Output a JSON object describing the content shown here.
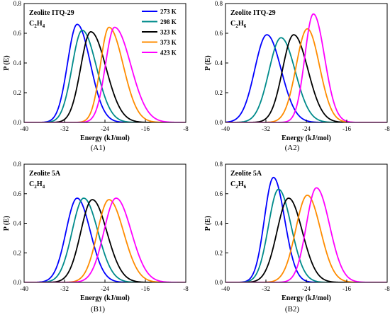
{
  "figure": {
    "panels": [
      "A1",
      "A2",
      "B1",
      "B2"
    ],
    "legend": [
      {
        "label": "273 K",
        "color": "#0000ff"
      },
      {
        "label": "298 K",
        "color": "#008b8b"
      },
      {
        "label": "323 K",
        "color": "#000000"
      },
      {
        "label": "373 K",
        "color": "#ff8c00"
      },
      {
        "label": "423 K",
        "color": "#ff00ff"
      }
    ]
  },
  "chart_data": [
    {
      "panel_label": "(A1)",
      "type": "line",
      "title": "Zeolite ITQ-29",
      "subtitle": "C2H4",
      "xlabel": "Energy (kJ/mol)",
      "ylabel": "P (E)",
      "xlim": [
        -40,
        -8
      ],
      "ylim": [
        0,
        0.8
      ],
      "xticks": [
        -40,
        -32,
        -24,
        -16,
        -8
      ],
      "yticks": [
        0.0,
        0.2,
        0.4,
        0.6,
        0.8
      ],
      "legend_position": "top-right",
      "series": [
        {
          "name": "273 K",
          "color": "#0000ff",
          "peak_x": -29.5,
          "peak_y": 0.66,
          "sigma_left": 1.9,
          "sigma_right": 2.6
        },
        {
          "name": "298 K",
          "color": "#008b8b",
          "peak_x": -28.5,
          "peak_y": 0.62,
          "sigma_left": 2.0,
          "sigma_right": 2.8
        },
        {
          "name": "323 K",
          "color": "#000000",
          "peak_x": -26.8,
          "peak_y": 0.61,
          "sigma_left": 2.0,
          "sigma_right": 3.0
        },
        {
          "name": "373 K",
          "color": "#ff8c00",
          "peak_x": -23.2,
          "peak_y": 0.64,
          "sigma_left": 1.7,
          "sigma_right": 2.8
        },
        {
          "name": "423 K",
          "color": "#ff00ff",
          "peak_x": -22.1,
          "peak_y": 0.64,
          "sigma_left": 1.8,
          "sigma_right": 3.2
        }
      ]
    },
    {
      "panel_label": "(A2)",
      "type": "line",
      "title": "Zeolite ITQ-29",
      "subtitle": "C2H6",
      "xlabel": "Energy (kJ/mol)",
      "ylabel": "P (E)",
      "xlim": [
        -40,
        -8
      ],
      "ylim": [
        0,
        0.8
      ],
      "xticks": [
        -40,
        -32,
        -24,
        -16,
        -8
      ],
      "yticks": [
        0.0,
        0.2,
        0.4,
        0.6,
        0.8
      ],
      "series": [
        {
          "name": "273 K",
          "color": "#0000ff",
          "peak_x": -31.8,
          "peak_y": 0.59,
          "sigma_left": 2.4,
          "sigma_right": 2.8
        },
        {
          "name": "298 K",
          "color": "#008b8b",
          "peak_x": -29.0,
          "peak_y": 0.57,
          "sigma_left": 2.4,
          "sigma_right": 2.8
        },
        {
          "name": "323 K",
          "color": "#000000",
          "peak_x": -26.5,
          "peak_y": 0.59,
          "sigma_left": 2.2,
          "sigma_right": 2.8
        },
        {
          "name": "373 K",
          "color": "#ff8c00",
          "peak_x": -23.8,
          "peak_y": 0.63,
          "sigma_left": 2.2,
          "sigma_right": 2.4
        },
        {
          "name": "423 K",
          "color": "#ff00ff",
          "peak_x": -22.6,
          "peak_y": 0.73,
          "sigma_left": 1.7,
          "sigma_right": 2.2
        }
      ]
    },
    {
      "panel_label": "(B1)",
      "type": "line",
      "title": "Zeolite 5A",
      "subtitle": "C2H4",
      "xlabel": "Energy (kJ/mol)",
      "ylabel": "P (E)",
      "xlim": [
        -40,
        -8
      ],
      "ylim": [
        0,
        0.8
      ],
      "xticks": [
        -40,
        -32,
        -24,
        -16,
        -8
      ],
      "yticks": [
        0.0,
        0.2,
        0.4,
        0.6,
        0.8
      ],
      "series": [
        {
          "name": "273 K",
          "color": "#0000ff",
          "peak_x": -29.5,
          "peak_y": 0.57,
          "sigma_left": 2.2,
          "sigma_right": 2.6
        },
        {
          "name": "298 K",
          "color": "#008b8b",
          "peak_x": -28.2,
          "peak_y": 0.57,
          "sigma_left": 2.3,
          "sigma_right": 2.8
        },
        {
          "name": "323 K",
          "color": "#000000",
          "peak_x": -26.5,
          "peak_y": 0.56,
          "sigma_left": 2.3,
          "sigma_right": 2.9
        },
        {
          "name": "373 K",
          "color": "#ff8c00",
          "peak_x": -23.2,
          "peak_y": 0.56,
          "sigma_left": 2.3,
          "sigma_right": 2.9
        },
        {
          "name": "423 K",
          "color": "#ff00ff",
          "peak_x": -21.8,
          "peak_y": 0.57,
          "sigma_left": 2.4,
          "sigma_right": 3.0
        }
      ]
    },
    {
      "panel_label": "(B2)",
      "type": "line",
      "title": "Zeolite 5A",
      "subtitle": "C2H6",
      "xlabel": "Energy (kJ/mol)",
      "ylabel": "P (E)",
      "xlim": [
        -40,
        -8
      ],
      "ylim": [
        0,
        0.8
      ],
      "xticks": [
        -40,
        -32,
        -24,
        -16,
        -8
      ],
      "yticks": [
        0.0,
        0.2,
        0.4,
        0.6,
        0.8
      ],
      "series": [
        {
          "name": "273 K",
          "color": "#0000ff",
          "peak_x": -30.5,
          "peak_y": 0.71,
          "sigma_left": 1.8,
          "sigma_right": 2.2
        },
        {
          "name": "298 K",
          "color": "#008b8b",
          "peak_x": -29.5,
          "peak_y": 0.63,
          "sigma_left": 2.0,
          "sigma_right": 2.5
        },
        {
          "name": "323 K",
          "color": "#000000",
          "peak_x": -27.5,
          "peak_y": 0.57,
          "sigma_left": 2.3,
          "sigma_right": 2.7
        },
        {
          "name": "373 K",
          "color": "#ff8c00",
          "peak_x": -23.8,
          "peak_y": 0.59,
          "sigma_left": 2.3,
          "sigma_right": 2.6
        },
        {
          "name": "423 K",
          "color": "#ff00ff",
          "peak_x": -22.0,
          "peak_y": 0.64,
          "sigma_left": 2.0,
          "sigma_right": 2.6
        }
      ]
    }
  ]
}
